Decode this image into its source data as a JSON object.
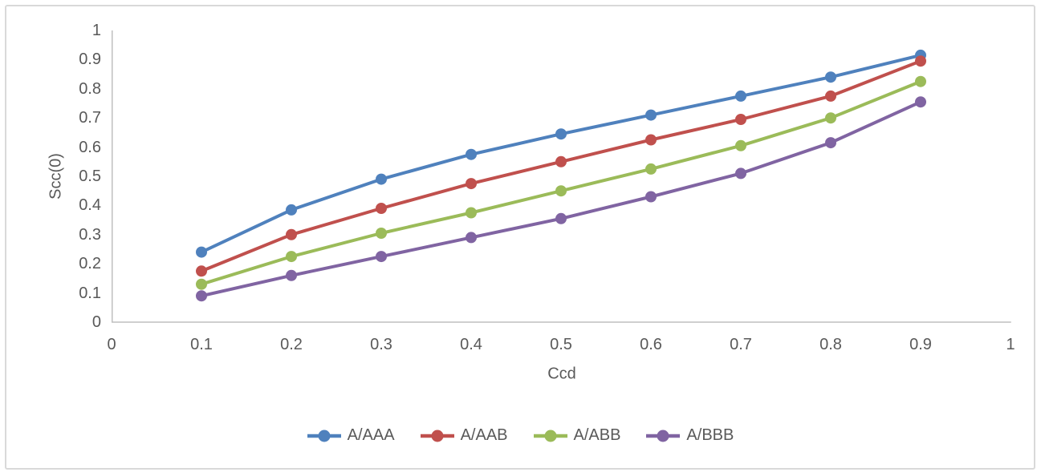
{
  "chart_data": {
    "type": "line",
    "title": "",
    "xlabel": "Ccd",
    "ylabel": "Scc(0)",
    "x": [
      0.1,
      0.2,
      0.3,
      0.4,
      0.5,
      0.6,
      0.7,
      0.8,
      0.9
    ],
    "xlim": [
      0,
      1
    ],
    "ylim": [
      0,
      1
    ],
    "x_ticks": [
      "0",
      "0.1",
      "0.2",
      "0.3",
      "0.4",
      "0.5",
      "0.6",
      "0.7",
      "0.8",
      "0.9",
      "1"
    ],
    "y_ticks": [
      "1",
      "0.9",
      "0.8",
      "0.7",
      "0.6",
      "0.5",
      "0.4",
      "0.3",
      "0.2",
      "0.1",
      "0"
    ],
    "grid": false,
    "marker": "circle",
    "legend_position": "bottom",
    "series": [
      {
        "name": "A/AAA",
        "color": "#4F81BD",
        "values": [
          0.24,
          0.385,
          0.49,
          0.575,
          0.645,
          0.71,
          0.775,
          0.84,
          0.915
        ]
      },
      {
        "name": "A/AAB",
        "color": "#C0504D",
        "values": [
          0.175,
          0.3,
          0.39,
          0.475,
          0.55,
          0.625,
          0.695,
          0.775,
          0.895
        ]
      },
      {
        "name": "A/ABB",
        "color": "#9BBB59",
        "values": [
          0.13,
          0.225,
          0.305,
          0.375,
          0.45,
          0.525,
          0.605,
          0.7,
          0.825
        ]
      },
      {
        "name": "A/BBB",
        "color": "#8064A2",
        "values": [
          0.09,
          0.16,
          0.225,
          0.29,
          0.355,
          0.43,
          0.51,
          0.615,
          0.755
        ]
      }
    ]
  },
  "colors": {
    "axis_line": "#BFBFBF",
    "text": "#595959",
    "border": "#D9D9D9",
    "background": "#FFFFFF"
  }
}
